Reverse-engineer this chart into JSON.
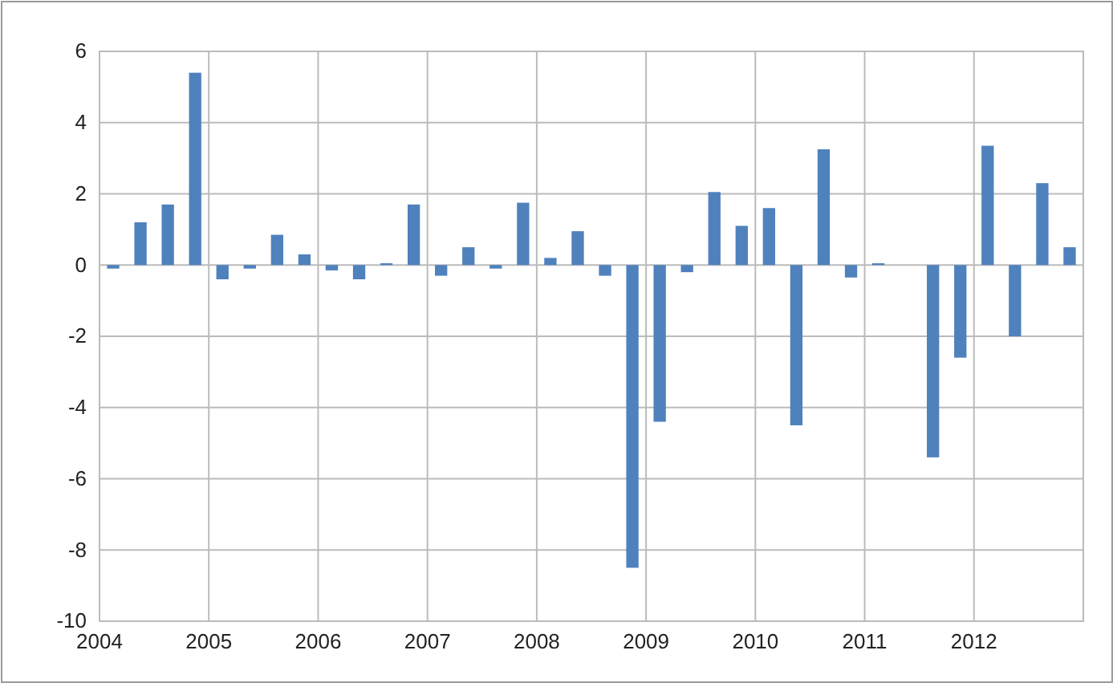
{
  "chart_data": {
    "type": "bar",
    "x": [
      2004.125,
      2004.375,
      2004.625,
      2004.875,
      2005.125,
      2005.375,
      2005.625,
      2005.875,
      2006.125,
      2006.375,
      2006.625,
      2006.875,
      2007.125,
      2007.375,
      2007.625,
      2007.875,
      2008.125,
      2008.375,
      2008.625,
      2008.875,
      2009.125,
      2009.375,
      2009.625,
      2009.875,
      2010.125,
      2010.375,
      2010.625,
      2010.875,
      2011.125,
      2011.375,
      2011.625,
      2011.875,
      2012.125,
      2012.375,
      2012.625,
      2012.875
    ],
    "series": [
      {
        "color": "#4f81bd",
        "values": [
          -0.1,
          1.2,
          1.7,
          5.4,
          -0.4,
          -0.1,
          0.85,
          0.3,
          -0.15,
          -0.4,
          0.05,
          1.7,
          -0.3,
          0.5,
          -0.1,
          1.75,
          0.2,
          0.95,
          -0.3,
          -8.5,
          -4.4,
          -0.2,
          2.05,
          1.1,
          1.6,
          -4.5,
          3.25,
          -0.35,
          0.05,
          0,
          -5.4,
          -2.6,
          3.35,
          -2.0,
          2.3,
          0.5
        ]
      }
    ],
    "xlim": [
      2004,
      2013
    ],
    "xticks": [
      2004,
      2005,
      2006,
      2007,
      2008,
      2009,
      2010,
      2011,
      2012
    ],
    "ylim": [
      -10,
      6
    ],
    "yticks": [
      -10,
      -8,
      -6,
      -4,
      -2,
      0,
      2,
      4,
      6
    ],
    "grid": true
  }
}
